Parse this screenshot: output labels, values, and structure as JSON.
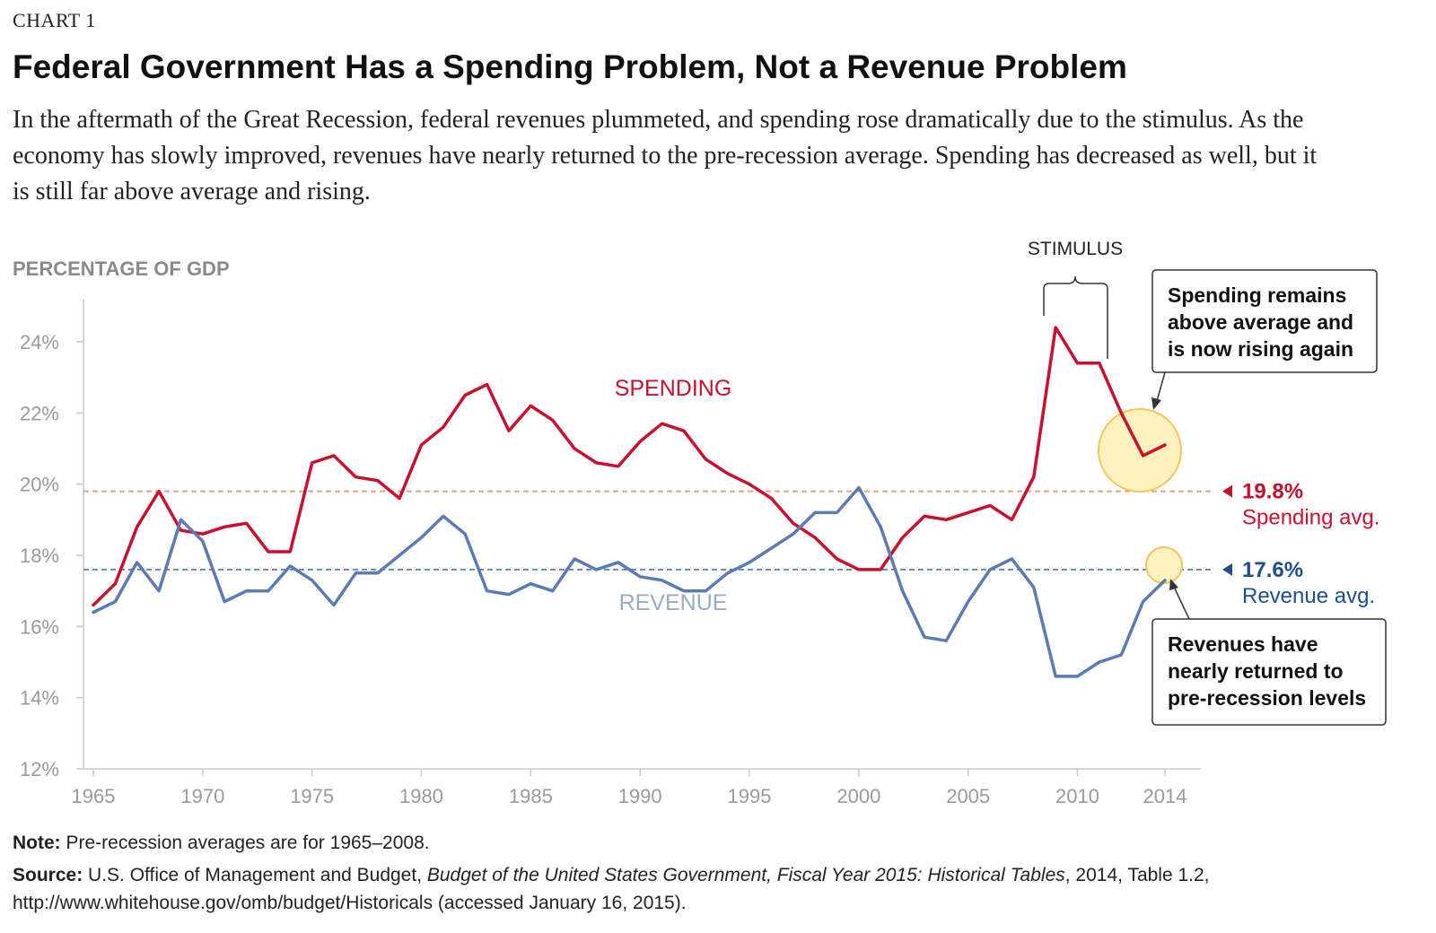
{
  "header": {
    "label": "CHART 1",
    "title": "Federal Government Has a Spending Problem, Not a Revenue Problem",
    "subtitle": "In the aftermath of the Great Recession, federal revenues plummeted, and spending rose dramatically due to the stimulus. As the economy has slowly improved, revenues have nearly returned to the pre-recession average. Spending has decreased as well, but it is still far above average and rising."
  },
  "chart_data": {
    "type": "line",
    "ylabel": "PERCENTAGE OF GDP",
    "ylim": [
      12,
      25
    ],
    "xlim": [
      1965,
      2014
    ],
    "yticks": [
      "12%",
      "14%",
      "16%",
      "18%",
      "20%",
      "22%",
      "24%"
    ],
    "xticks": [
      "1965",
      "1970",
      "1975",
      "1980",
      "1985",
      "1990",
      "1995",
      "2000",
      "2005",
      "2010",
      "2014"
    ],
    "grid": false,
    "x": [
      1965,
      1966,
      1967,
      1968,
      1969,
      1970,
      1971,
      1972,
      1973,
      1974,
      1975,
      1976,
      1977,
      1978,
      1979,
      1980,
      1981,
      1982,
      1983,
      1984,
      1985,
      1986,
      1987,
      1988,
      1989,
      1990,
      1991,
      1992,
      1993,
      1994,
      1995,
      1996,
      1997,
      1998,
      1999,
      2000,
      2001,
      2002,
      2003,
      2004,
      2005,
      2006,
      2007,
      2008,
      2009,
      2010,
      2011,
      2012,
      2013,
      2014
    ],
    "series": [
      {
        "name": "SPENDING",
        "color": "#c8102e",
        "values": [
          16.6,
          17.2,
          18.8,
          19.8,
          18.7,
          18.6,
          18.8,
          18.9,
          18.1,
          18.1,
          20.6,
          20.8,
          20.2,
          20.1,
          19.6,
          21.1,
          21.6,
          22.5,
          22.8,
          21.5,
          22.2,
          21.8,
          21.0,
          20.6,
          20.5,
          21.2,
          21.7,
          21.5,
          20.7,
          20.3,
          20.0,
          19.6,
          18.9,
          18.5,
          17.9,
          17.6,
          17.6,
          18.5,
          19.1,
          19.0,
          19.2,
          19.4,
          19.0,
          20.2,
          24.4,
          23.4,
          23.4,
          22.0,
          20.8,
          21.1
        ]
      },
      {
        "name": "REVENUE",
        "color": "#5a7bb5",
        "values": [
          16.4,
          16.7,
          17.8,
          17.0,
          19.0,
          18.4,
          16.7,
          17.0,
          17.0,
          17.7,
          17.3,
          16.6,
          17.5,
          17.5,
          18.0,
          18.5,
          19.1,
          18.6,
          17.0,
          16.9,
          17.2,
          17.0,
          17.9,
          17.6,
          17.8,
          17.4,
          17.3,
          17.0,
          17.0,
          17.5,
          17.8,
          18.2,
          18.6,
          19.2,
          19.2,
          19.9,
          18.8,
          17.0,
          15.7,
          15.6,
          16.7,
          17.6,
          17.9,
          17.1,
          14.6,
          14.6,
          15.0,
          15.2,
          16.7,
          17.3
        ]
      }
    ],
    "averages": [
      {
        "value": 19.8,
        "label": "19.8%",
        "sublabel": "Spending avg.",
        "color": "#c8102e",
        "line_color": "#e59a7f"
      },
      {
        "value": 17.6,
        "label": "17.6%",
        "sublabel": "Revenue avg.",
        "color": "#1f4e8c",
        "line_color": "#5a7bb5"
      }
    ],
    "annotations": {
      "stimulus": "STIMULUS",
      "spending_callout": [
        "Spending remains",
        "above average and",
        "is now rising again"
      ],
      "revenue_callout": [
        "Revenues have",
        "nearly returned to",
        "pre-recession levels"
      ]
    },
    "highlight_color": "#fdf1bd",
    "highlight_stroke": "#f3c55c"
  },
  "footer": {
    "note_label": "Note:",
    "note_text": " Pre-recession averages are for 1965–2008.",
    "source_label": "Source:",
    "source_text_1": " U.S. Office of Management and Budget, ",
    "source_italic": "Budget of the United States Government, Fiscal Year 2015: Historical Tables",
    "source_text_2": ", 2014, Table 1.2, http://www.whitehouse.gov/omb/budget/Historicals (accessed January 16, 2015)."
  }
}
